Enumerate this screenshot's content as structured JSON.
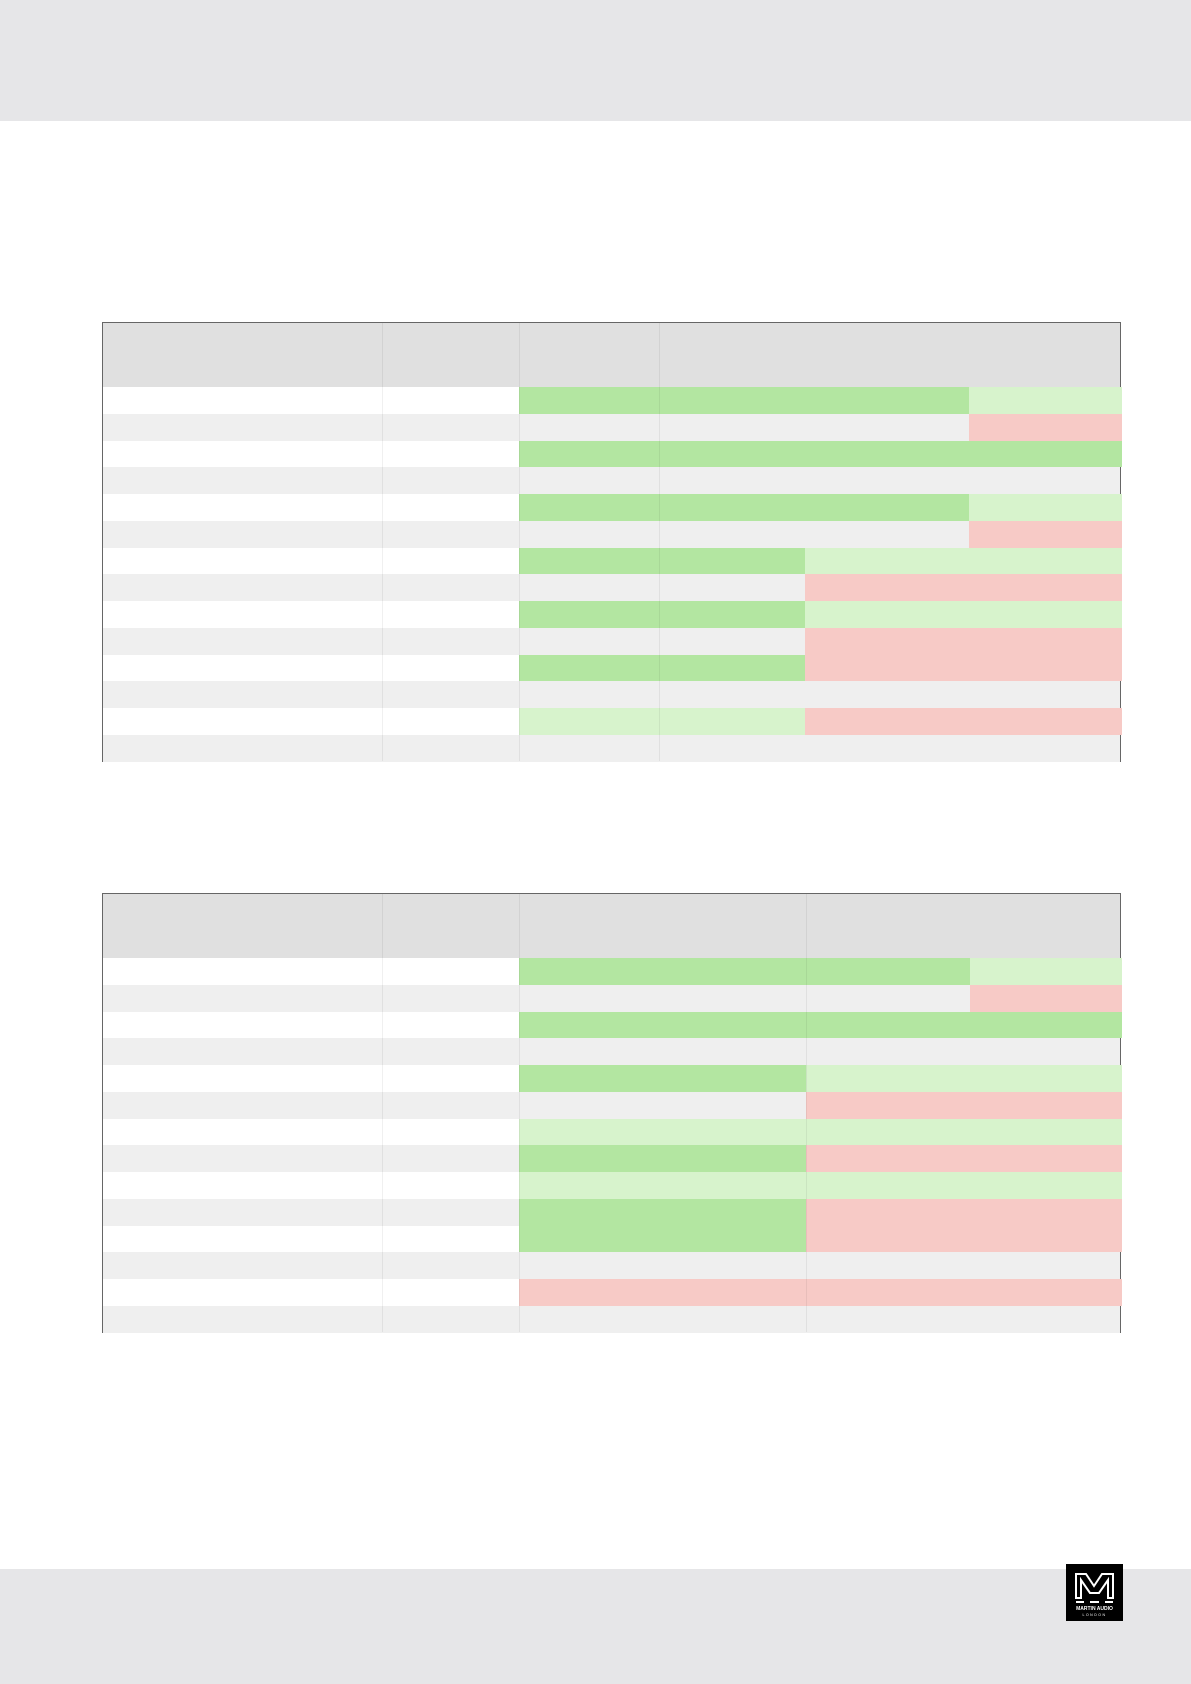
{
  "colors": {
    "band": "#e6e6e8",
    "header": "#e0e0e0",
    "row_alt": "#efefef",
    "G": "#b3e6a1",
    "LG": "#d7f3cc",
    "R": "#f7cac6"
  },
  "logo": {
    "text": "MARTIN AUDIO",
    "subtext": "LONDON"
  },
  "tables": [
    {
      "rows": [
        [
          "G",
          "G",
          "G",
          "LG"
        ],
        [
          "",
          "",
          "",
          "R"
        ],
        [
          "G",
          "G",
          "G",
          "G"
        ],
        [
          "",
          "",
          "",
          ""
        ],
        [
          "G",
          "G",
          "G",
          "LG"
        ],
        [
          "",
          "",
          "",
          "R"
        ],
        [
          "G",
          "G",
          "LG",
          "LG"
        ],
        [
          "",
          "",
          "R",
          "R"
        ],
        [
          "G",
          "G",
          "LG",
          "LG"
        ],
        [
          "",
          "",
          "R",
          "R"
        ],
        [
          "G",
          "G",
          "R",
          "R"
        ],
        [
          "",
          "",
          "",
          ""
        ],
        [
          "LG",
          "LG",
          "R",
          "R"
        ],
        [
          "",
          "",
          "",
          ""
        ]
      ]
    },
    {
      "rows": [
        [
          "G",
          "G",
          "LG"
        ],
        [
          "",
          "",
          "R"
        ],
        [
          "G",
          "G",
          "G"
        ],
        [
          "",
          "",
          ""
        ],
        [
          "G",
          "LG",
          "LG"
        ],
        [
          "",
          "R",
          "R"
        ],
        [
          "LG",
          "LG",
          "LG"
        ],
        [
          "G",
          "R",
          "R"
        ],
        [
          "LG",
          "LG",
          "LG"
        ],
        [
          "G",
          "R",
          "R"
        ],
        [
          "G",
          "R",
          "R"
        ],
        [
          "",
          "",
          ""
        ],
        [
          "R",
          "R",
          "R"
        ],
        [
          "",
          "",
          ""
        ]
      ]
    }
  ]
}
